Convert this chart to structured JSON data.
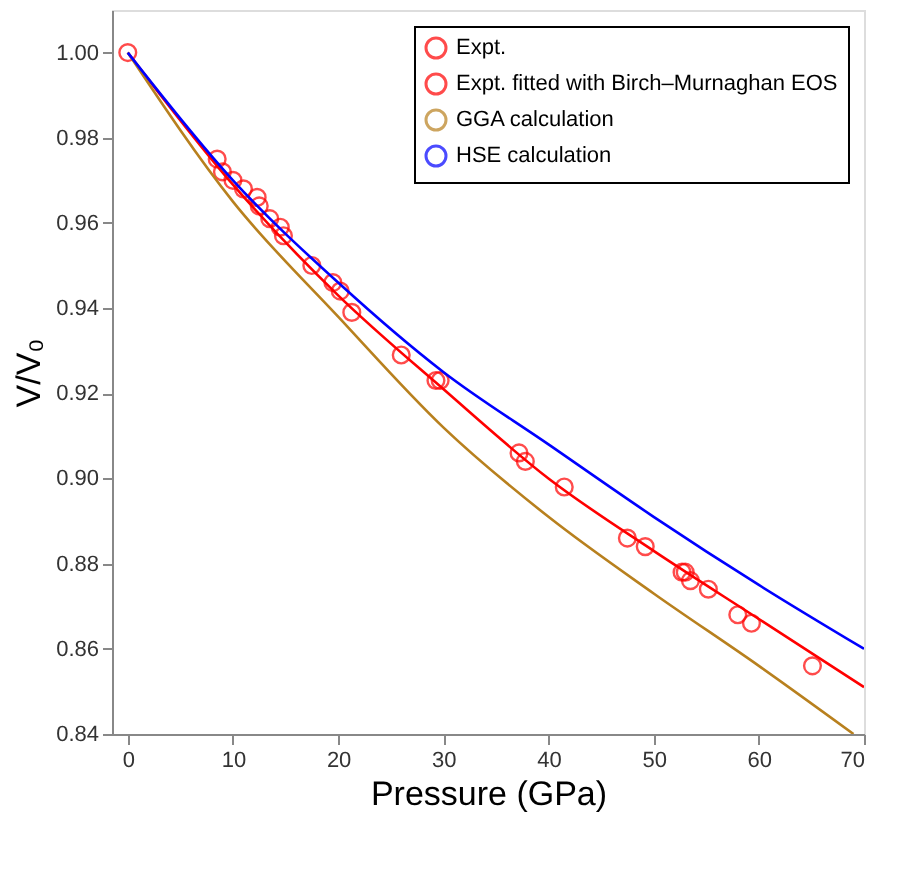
{
  "chart_data": {
    "type": "line",
    "xlabel": "Pressure (GPa)",
    "ylabel": "V/V₀",
    "xlim": [
      -1.5,
      70
    ],
    "ylim": [
      0.84,
      1.01
    ],
    "xticks": [
      0,
      10,
      20,
      30,
      40,
      50,
      60,
      70
    ],
    "yticks": [
      0.84,
      0.86,
      0.88,
      {
        "value": 0.9,
        "label": "0.90"
      },
      0.92,
      0.94,
      0.96,
      0.98,
      {
        "value": 1.0,
        "label": "1.00"
      }
    ],
    "grid": false,
    "legend": "top right",
    "series": [
      {
        "name": "Expt.",
        "type": "scatter",
        "marker": "circle",
        "color": "#ff0000",
        "x": [
          0,
          8.5,
          9,
          10,
          11,
          12.3,
          12.5,
          13.5,
          14.5,
          14.8,
          17.5,
          19.5,
          20.2,
          21.3,
          26,
          29.3,
          29.7,
          37.2,
          37.8,
          41.5,
          47.5,
          49.2,
          52.7,
          53,
          53.5,
          55.2,
          58,
          59.3,
          65.1
        ],
        "values": [
          1.0,
          0.975,
          0.972,
          0.97,
          0.968,
          0.966,
          0.964,
          0.961,
          0.959,
          0.957,
          0.95,
          0.946,
          0.944,
          0.939,
          0.929,
          0.923,
          0.923,
          0.906,
          0.904,
          0.898,
          0.886,
          0.884,
          0.878,
          0.878,
          0.876,
          0.874,
          0.868,
          0.866,
          0.856
        ]
      },
      {
        "name": "Expt. fitted with Birch–Murnaghan EOS",
        "color": "#ff0000",
        "x": [
          0,
          10,
          20,
          30,
          40,
          50,
          60,
          70
        ],
        "values": [
          1.0,
          0.969,
          0.943,
          0.921,
          0.9,
          0.883,
          0.867,
          0.851
        ]
      },
      {
        "name": "GGA calculation",
        "color": "#b8801e",
        "x": [
          0,
          10,
          20,
          30,
          40,
          50,
          60,
          69
        ],
        "values": [
          1.0,
          0.965,
          0.938,
          0.912,
          0.891,
          0.873,
          0.856,
          0.84
        ]
      },
      {
        "name": "HSE calculation",
        "color": "#0000ff",
        "x": [
          0,
          10,
          20,
          30,
          40,
          50,
          60,
          70
        ],
        "values": [
          1.0,
          0.97,
          0.946,
          0.925,
          0.908,
          0.891,
          0.875,
          0.86
        ]
      }
    ]
  }
}
